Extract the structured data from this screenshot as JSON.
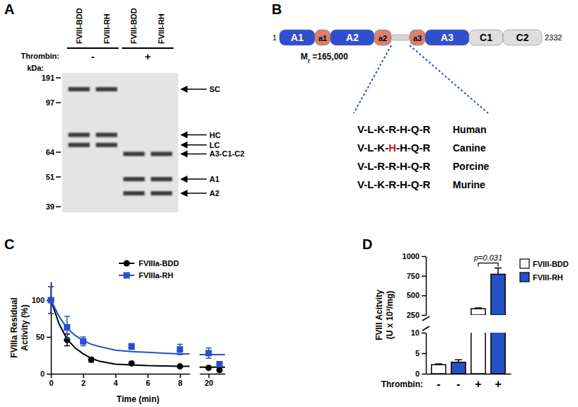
{
  "gel": {
    "panel": "A",
    "lanes": [
      "FVIII-BDD",
      "FVIII-RH",
      "FVIII-BDD",
      "FVIII-RH"
    ],
    "treatment_label": "Thrombin:",
    "treatments": [
      {
        "label": "-",
        "lanes": [
          0,
          1
        ]
      },
      {
        "label": "+",
        "lanes": [
          2,
          3
        ]
      }
    ],
    "marker_label": "kDa:",
    "markers": [
      191,
      97,
      64,
      51,
      39
    ],
    "bands": [
      {
        "label": "SC",
        "kda": 140,
        "lanes": [
          0,
          1
        ]
      },
      {
        "label": "HC",
        "kda": 74,
        "lanes": [
          0,
          1
        ]
      },
      {
        "label": "LC",
        "kda": 68,
        "lanes": [
          0,
          1
        ]
      },
      {
        "label": "A3-C1-C2",
        "kda": 63,
        "lanes": [
          2,
          3
        ]
      },
      {
        "label": "A1",
        "kda": 50,
        "lanes": [
          2,
          3
        ]
      },
      {
        "label": "A2",
        "kda": 44,
        "lanes": [
          2,
          3
        ]
      }
    ]
  },
  "diagram": {
    "panel": "B",
    "start": 1,
    "end": 2332,
    "domains": [
      {
        "label": "A1",
        "color": "#2f4fd0"
      },
      {
        "label": "a1",
        "color": "#d9806f"
      },
      {
        "label": "A2",
        "color": "#2f4fd0"
      },
      {
        "label": "a2",
        "color": "#d9806f"
      },
      {
        "label": null,
        "color": "#d6d6d6"
      },
      {
        "label": "a3",
        "color": "#d9806f"
      },
      {
        "label": "A3",
        "color": "#2f4fd0"
      },
      {
        "label": "C1",
        "color": "#dedede"
      },
      {
        "label": "C2",
        "color": "#dedede"
      }
    ],
    "mass_label": {
      "symbol": "M",
      "subscript": "r",
      "value": "=165,000"
    },
    "sequences": [
      {
        "species": "Human",
        "parts": [
          {
            "text": "V-L-K-R-H-Q-R"
          }
        ]
      },
      {
        "species": "Canine",
        "parts": [
          {
            "text": "V-L-K-"
          },
          {
            "text": "H",
            "color": "#c8141c"
          },
          {
            "text": "-H-Q-R"
          }
        ]
      },
      {
        "species": "Porcine",
        "parts": [
          {
            "text": "V-L-R-R-H-Q-R"
          }
        ]
      },
      {
        "species": "Murine",
        "parts": [
          {
            "text": "V-L-K-R-H-Q-R"
          }
        ]
      }
    ]
  },
  "chart_data": [
    {
      "panel": "C",
      "type": "line",
      "x_label": "Time (min)",
      "y_label": [
        "FVIIIa Residual",
        "Activity (%)"
      ],
      "x_segments": [
        {
          "xlim": [
            0,
            8.6
          ],
          "xticks": [
            0,
            2,
            4,
            6,
            8
          ]
        },
        {
          "xlim": [
            19,
            21.8
          ],
          "xticks": [
            20
          ]
        }
      ],
      "ylim": [
        0,
        125
      ],
      "yticks": [
        0,
        50,
        100
      ],
      "legend": "top-right",
      "series": [
        {
          "name": "FVIIIa-BDD",
          "color": "#000000",
          "marker": "circle",
          "x": [
            0,
            1,
            2.5,
            5,
            8,
            20,
            21.2
          ],
          "values": [
            100,
            46,
            19,
            14,
            10,
            8,
            5
          ],
          "errors": [
            18,
            8,
            3,
            2,
            1,
            1,
            1
          ],
          "fit": [
            {
              "x": [
                0,
                0.5,
                1,
                1.5,
                2,
                2.5,
                3,
                4,
                5,
                6,
                7,
                8,
                8.6
              ],
              "values": [
                100,
                68,
                47,
                35,
                27,
                21,
                17,
                13,
                12,
                11,
                10.5,
                10,
                10
              ]
            },
            {
              "x": [
                19,
                21.8
              ],
              "values": [
                9,
                9
              ]
            }
          ]
        },
        {
          "name": "FVIIIa-RH",
          "color": "#2650c8",
          "marker": "square",
          "x": [
            0,
            1,
            2,
            5,
            8,
            20,
            21.2
          ],
          "values": [
            100,
            63,
            44,
            37,
            33,
            28,
            13
          ],
          "errors": [
            18,
            15,
            6,
            4,
            7,
            7,
            3
          ],
          "fit": [
            {
              "x": [
                0,
                0.5,
                1,
                1.5,
                2,
                2.5,
                3,
                4,
                5,
                6,
                7,
                8,
                8.6
              ],
              "values": [
                100,
                78,
                62,
                52,
                45,
                40,
                37,
                32,
                30,
                29,
                28,
                27,
                27
              ]
            },
            {
              "x": [
                19,
                21.8
              ],
              "values": [
                26,
                26
              ]
            }
          ]
        }
      ]
    },
    {
      "panel": "D",
      "type": "bar",
      "x_label": "Thrombin:",
      "y_label": [
        "FVIII Acitvity",
        "(U x 10³/mg)"
      ],
      "categories": [
        "-",
        "-",
        "+",
        "+"
      ],
      "y_segments": [
        {
          "ylim": [
            0,
            10
          ],
          "yticks": [
            0,
            5,
            10
          ]
        },
        {
          "ylim": [
            250,
            1000
          ],
          "yticks": [
            250,
            500,
            750,
            1000
          ]
        }
      ],
      "legend": "right",
      "series": [
        {
          "name": "FVIII-BDD",
          "color": "#ffffff",
          "values": [
            2.2,
            null,
            330,
            null
          ],
          "errors": [
            0.2,
            null,
            10,
            null
          ]
        },
        {
          "name": "FVIII-RH",
          "color": "#2650c8",
          "values": [
            null,
            2.8,
            null,
            770
          ],
          "errors": [
            null,
            0.6,
            null,
            80
          ]
        }
      ],
      "annotations": [
        {
          "text": "p=0.031",
          "between": [
            2,
            3
          ]
        }
      ]
    }
  ]
}
